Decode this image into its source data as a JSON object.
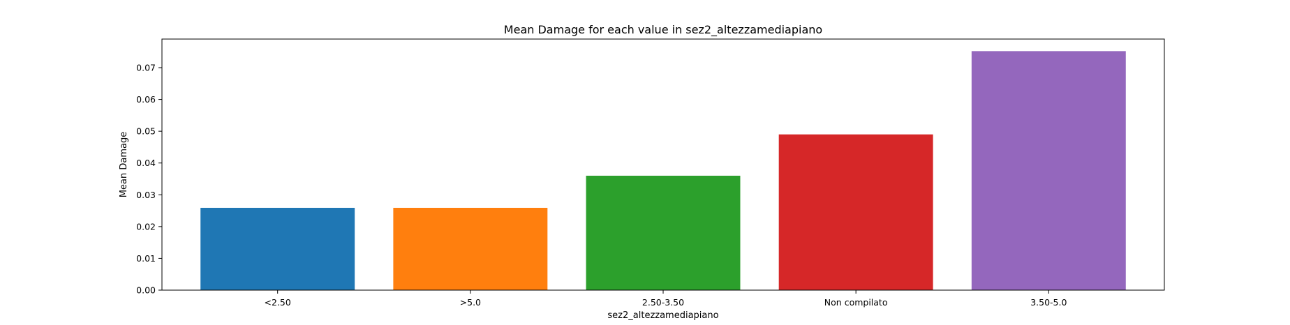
{
  "chart_data": {
    "type": "bar",
    "title": "Mean Damage for each value in sez2_altezzamediapiano",
    "xlabel": "sez2_altezzamediapiano",
    "ylabel": "Mean Damage",
    "categories": [
      "<2.50",
      ">5.0",
      "2.50-3.50",
      "Non compilato",
      "3.50-5.0"
    ],
    "values": [
      0.0259,
      0.0259,
      0.036,
      0.049,
      0.0752
    ],
    "colors": [
      "#1f77b4",
      "#ff7f0e",
      "#2ca02c",
      "#d62728",
      "#9467bd"
    ],
    "ylim": [
      0,
      0.079
    ],
    "yticks": [
      0.0,
      0.01,
      0.02,
      0.03,
      0.04,
      0.05,
      0.06,
      0.07
    ],
    "ytick_labels": [
      "0.00",
      "0.01",
      "0.02",
      "0.03",
      "0.04",
      "0.05",
      "0.06",
      "0.07"
    ],
    "grid": false,
    "legend": "none"
  }
}
